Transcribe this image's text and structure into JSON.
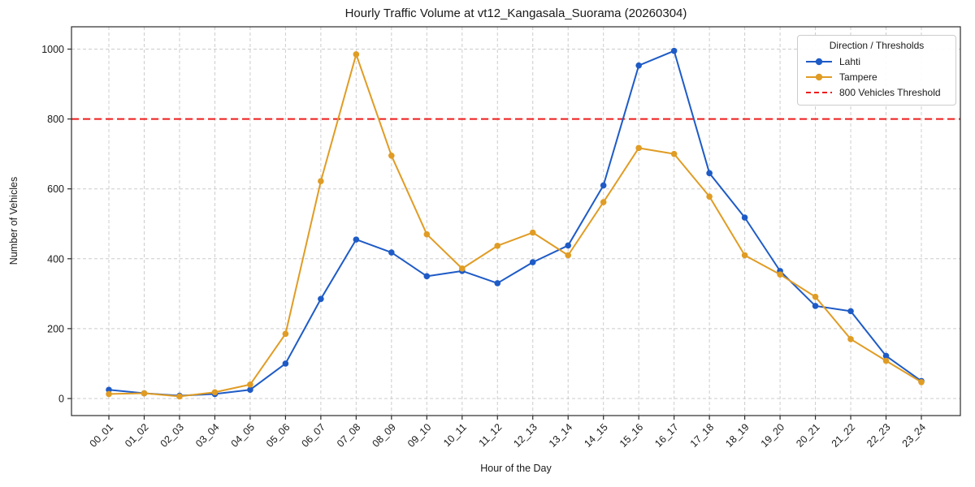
{
  "figure": {
    "title": "Hourly Traffic Volume at vt12_Kangasala_Suorama (20260304)",
    "xlabel": "Hour of the Day",
    "ylabel": "Number of Vehicles"
  },
  "legend": {
    "title": "Direction / Thresholds",
    "entries": [
      {
        "label": "Lahti",
        "color": "#1e5bc6",
        "style": "line-marker"
      },
      {
        "label": "Tampere",
        "color": "#e09c24",
        "style": "line-marker"
      },
      {
        "label": "800 Vehicles Threshold",
        "color": "#ee1c1c",
        "style": "dashed-line"
      }
    ]
  },
  "colors": {
    "grid": "#cccccc",
    "spine": "#2b2b2b",
    "tick_text": "#1a1a1a",
    "lahti_blue": "#1e5bc6",
    "tampere_orange": "#e09c24",
    "threshold_red": "#ee1c1c"
  },
  "chart_data": {
    "type": "line",
    "title": "Hourly Traffic Volume at vt12_Kangasala_Suorama (20260304)",
    "xlabel": "Hour of the Day",
    "ylabel": "Number of Vehicles",
    "categories": [
      "00_01",
      "01_02",
      "02_03",
      "03_04",
      "04_05",
      "05_06",
      "06_07",
      "07_08",
      "08_09",
      "09_10",
      "10_11",
      "11_12",
      "12_13",
      "13_14",
      "14_15",
      "15_16",
      "16_17",
      "17_18",
      "18_19",
      "19_20",
      "20_21",
      "21_22",
      "22_23",
      "23_24"
    ],
    "series": [
      {
        "name": "Lahti",
        "color": "#1e5bc6",
        "marker": "circle",
        "values": [
          25,
          15,
          8,
          13,
          25,
          100,
          285,
          455,
          418,
          350,
          365,
          330,
          390,
          438,
          610,
          953,
          995,
          645,
          518,
          365,
          265,
          250,
          122,
          50
        ]
      },
      {
        "name": "Tampere",
        "color": "#e09c24",
        "marker": "circle",
        "values": [
          13,
          15,
          6,
          18,
          40,
          185,
          622,
          985,
          695,
          470,
          372,
          437,
          475,
          410,
          562,
          717,
          700,
          578,
          410,
          355,
          291,
          170,
          108,
          47
        ]
      }
    ],
    "threshold": {
      "value": 800,
      "label": "800 Vehicles Threshold",
      "color": "#ee1c1c",
      "linestyle": "dashed"
    },
    "yticks": [
      0,
      200,
      400,
      600,
      800,
      1000
    ],
    "ylim": [
      -49,
      1064
    ],
    "grid": true,
    "legend_position": "upper right"
  }
}
